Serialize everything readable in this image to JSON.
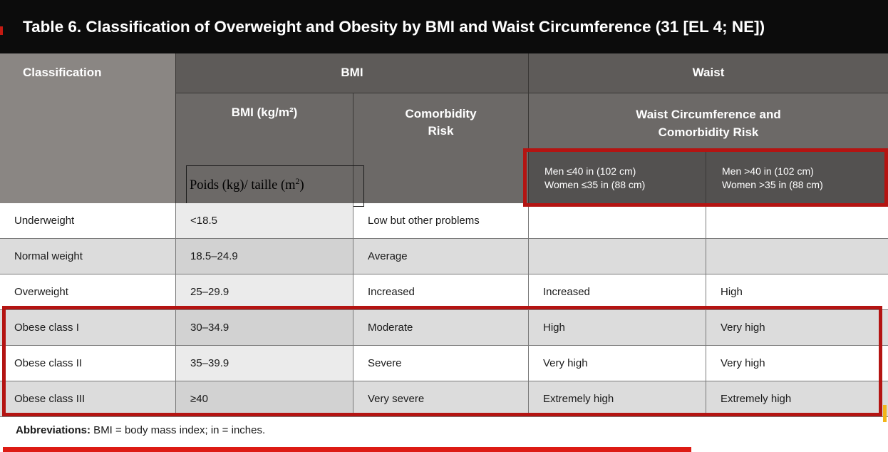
{
  "title": "Table 6.  Classification of Overweight and Obesity by BMI and Waist Circumference (31 [EL 4; NE])",
  "headers": {
    "classification": "Classification",
    "bmi_group": "BMI",
    "waist_group": "Waist",
    "bmi_unit": "BMI (kg/m²)",
    "comorbidity_line1": "Comorbidity",
    "comorbidity_line2": "Risk",
    "waist_circ_line1": "Waist Circumference and",
    "waist_circ_line2": "Comorbidity Risk",
    "waist_low_men": "Men ≤40 in (102 cm)",
    "waist_low_women": "Women ≤35 in (88 cm)",
    "waist_high_men": "Men >40 in (102 cm)",
    "waist_high_women": "Women >35 in (88 cm)"
  },
  "annotation": {
    "formula_main": "Poids (kg)/ taille (m",
    "formula_sup": "2",
    "formula_close": ")"
  },
  "rows": [
    {
      "classification": "Underweight",
      "bmi": "<18.5",
      "comorbidity": "Low but other problems",
      "waist_low": "",
      "waist_high": ""
    },
    {
      "classification": "Normal weight",
      "bmi": "18.5–24.9",
      "comorbidity": "Average",
      "waist_low": "",
      "waist_high": ""
    },
    {
      "classification": "Overweight",
      "bmi": "25–29.9",
      "comorbidity": "Increased",
      "waist_low": "Increased",
      "waist_high": "High"
    },
    {
      "classification": "Obese class I",
      "bmi": "30–34.9",
      "comorbidity": "Moderate",
      "waist_low": "High",
      "waist_high": "Very high"
    },
    {
      "classification": "Obese class II",
      "bmi": "35–39.9",
      "comorbidity": "Severe",
      "waist_low": "Very high",
      "waist_high": "Very high"
    },
    {
      "classification": "Obese class III",
      "bmi": "≥40",
      "comorbidity": "Very severe",
      "waist_low": "Extremely high",
      "waist_high": "Extremely high"
    }
  ],
  "footnote": {
    "label": "Abbreviations:",
    "text": " BMI = body mass index; in = inches."
  },
  "colors": {
    "title_bg": "#0c0c0c",
    "header_dark": "#5e5b59",
    "header_mid": "#6c6967",
    "header_light": "#8a8683",
    "highlight_red": "#b41412",
    "row_alt": "#dcdcdc"
  }
}
